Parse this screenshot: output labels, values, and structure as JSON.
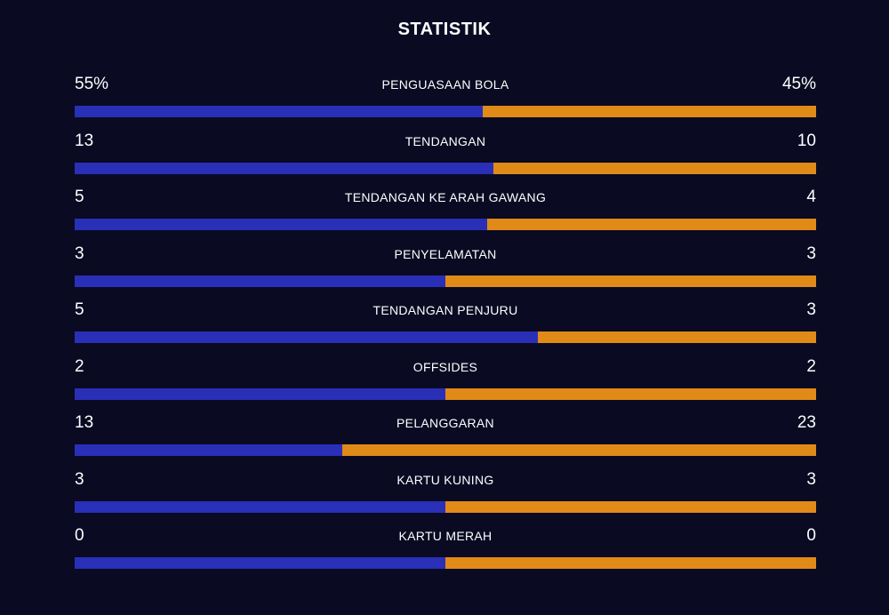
{
  "title": "STATISTIK",
  "colors": {
    "background": "#0a0a23",
    "home_bar": "#2a2fb8",
    "away_bar": "#e08a18",
    "text": "#ffffff"
  },
  "stats": [
    {
      "label": "PENGUASAAN BOLA",
      "home": "55%",
      "away": "45%",
      "home_share": 0.55
    },
    {
      "label": "TENDANGAN",
      "home": "13",
      "away": "10",
      "home_share": 0.565
    },
    {
      "label": "TENDANGAN KE ARAH GAWANG",
      "home": "5",
      "away": "4",
      "home_share": 0.556
    },
    {
      "label": "PENYELAMATAN",
      "home": "3",
      "away": "3",
      "home_share": 0.5
    },
    {
      "label": "TENDANGAN PENJURU",
      "home": "5",
      "away": "3",
      "home_share": 0.625
    },
    {
      "label": "OFFSIDES",
      "home": "2",
      "away": "2",
      "home_share": 0.5
    },
    {
      "label": "PELANGGARAN",
      "home": "13",
      "away": "23",
      "home_share": 0.361
    },
    {
      "label": "KARTU KUNING",
      "home": "3",
      "away": "3",
      "home_share": 0.5
    },
    {
      "label": "KARTU MERAH",
      "home": "0",
      "away": "0",
      "home_share": 0.5
    }
  ]
}
